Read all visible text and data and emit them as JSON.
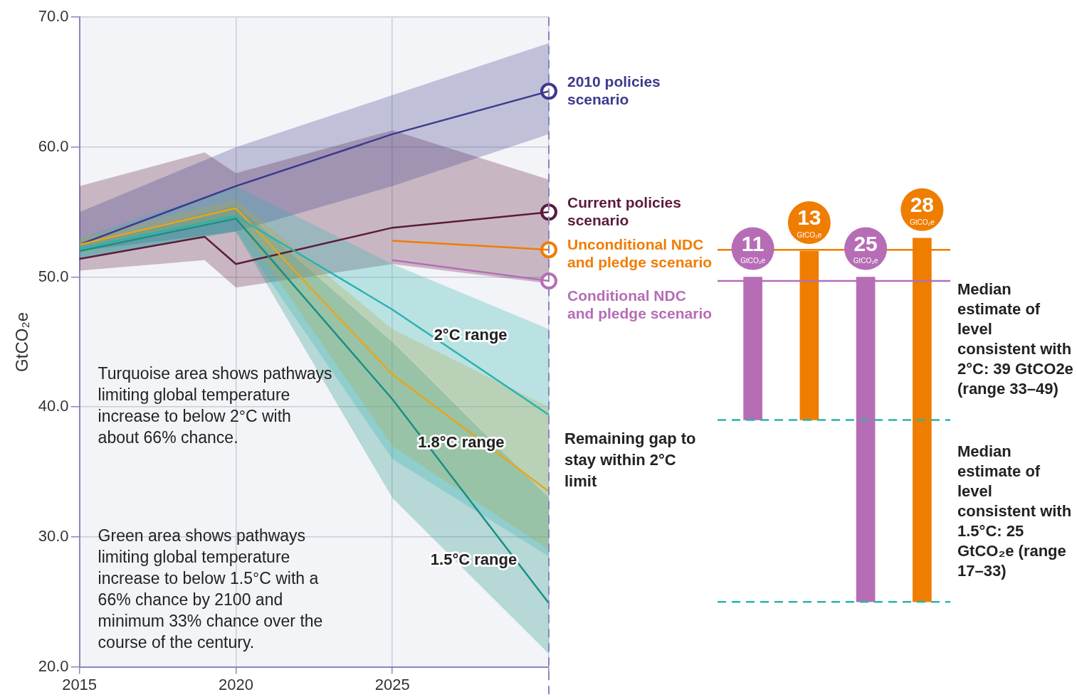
{
  "chart_data": [
    {
      "type": "line",
      "ylabel": "GtCO₂e",
      "xlim": [
        2015,
        2030
      ],
      "xticks": [
        2015,
        2020,
        2025,
        {
          "value": 2030,
          "label": null
        }
      ],
      "ylim": [
        20,
        70
      ],
      "yticks": [
        {
          "value": 20,
          "label": "20.0"
        },
        {
          "value": 30,
          "label": "30.0"
        },
        {
          "value": 40,
          "label": "40.0"
        },
        {
          "value": 50,
          "label": "50.0"
        },
        {
          "value": 60,
          "label": "60.0"
        },
        {
          "value": 70,
          "label": "70.0"
        }
      ],
      "grid": true,
      "legend": false,
      "series": [
        {
          "type": "line",
          "color": "#2ab3b0",
          "x": [
            2015,
            2020,
            2025,
            2030
          ],
          "values": [
            52.2,
            54.7,
            47.5,
            39.4
          ],
          "lower": [
            51.5,
            53.5,
            36,
            28.5
          ],
          "upper": [
            53,
            57,
            51,
            46
          ]
        },
        {
          "type": "line",
          "color": "#e8a51c",
          "x": [
            2015,
            2020,
            2025,
            2030
          ],
          "values": [
            52.5,
            55.3,
            42.5,
            33.5
          ],
          "lower": [
            52,
            54.5,
            37,
            29
          ],
          "upper": [
            53,
            56,
            46,
            40
          ]
        },
        {
          "type": "line",
          "color": "#1a8f86",
          "x": [
            2015,
            2020,
            2025,
            2030
          ],
          "values": [
            52,
            54.5,
            40.6,
            24.9
          ],
          "lower": [
            51.5,
            53.5,
            33,
            21
          ],
          "upper": [
            52.5,
            55.5,
            45,
            33
          ]
        },
        {
          "type": "line",
          "name": "2010 policies scenario",
          "color": "#3d3a8c",
          "x": [
            2015,
            2020,
            2025,
            2030
          ],
          "values": [
            52.5,
            57,
            61,
            64.3
          ],
          "lower": [
            52,
            53.5,
            57,
            61
          ],
          "upper": [
            55,
            60,
            64,
            68
          ]
        },
        {
          "type": "line",
          "name": "Current policies scenario",
          "color": "#5b1a3c",
          "x": [
            2015,
            2019,
            2020,
            2025,
            2030
          ],
          "values": [
            51.4,
            53.1,
            51,
            53.8,
            55
          ],
          "lower": [
            50.5,
            51.3,
            49.2,
            51,
            49.5
          ],
          "upper": [
            57,
            59.6,
            58,
            61.3,
            57.5
          ]
        },
        {
          "type": "line",
          "name": "Unconditional NDC and pledge scenario",
          "color": "#ef7d00",
          "x": [
            2025,
            2030
          ],
          "values": [
            52.8,
            52.1
          ]
        },
        {
          "type": "line",
          "name": "Conditional NDC and pledge scenario",
          "color": "#b66db6",
          "x": [
            2025,
            2030
          ],
          "values": [
            51.3,
            49.7
          ]
        },
        {
          "type": "scatter",
          "color": "#3d3a8c",
          "marker": "circle",
          "x": [
            2030
          ],
          "values": [
            64.3
          ]
        },
        {
          "type": "scatter",
          "color": "#5b1a3c",
          "marker": "circle",
          "x": [
            2030
          ],
          "values": [
            55
          ]
        },
        {
          "type": "scatter",
          "color": "#ef7d00",
          "marker": "circle",
          "x": [
            2030
          ],
          "values": [
            52.1
          ]
        },
        {
          "type": "scatter",
          "color": "#b66db6",
          "marker": "circle",
          "x": [
            2030
          ],
          "values": [
            49.7
          ]
        }
      ],
      "ref_lines": [
        {
          "axis": "x",
          "value": 2030,
          "color": "#8a84c0",
          "line_style": "dashed"
        }
      ],
      "annotations": [
        "Turquoise area shows pathways limiting global temperature increase to below 2°C with about 66% chance.",
        "Green area shows pathways limiting global temperature increase to below 1.5°C with a 66% chance by 2100 and minimum 33% chance over the course of the century.",
        "2°C range",
        "1.8°C range",
        "1.5°C range",
        "Remaining gap to stay within 2°C limit"
      ]
    },
    {
      "type": "bar",
      "categories": [
        null,
        null,
        null,
        null
      ],
      "ylim": [
        20,
        70
      ],
      "tick_labels": false,
      "base": [
        39,
        39,
        25,
        25
      ],
      "values": [
        11,
        13,
        25,
        28
      ],
      "colors": [
        "#b66db6",
        "#ef7d00",
        "#b66db6",
        "#ef7d00"
      ],
      "value_labels": [
        "11 GtCO₂e",
        "13 GtCO₂e",
        "25 GtCO₂e",
        "28 GtCO₂e"
      ],
      "ref_lines": [
        {
          "axis": "y",
          "value": 52.1,
          "color": "#ef7d00",
          "line_style": "solid"
        },
        {
          "axis": "y",
          "value": 49.7,
          "color": "#b66db6",
          "line_style": "solid"
        },
        {
          "axis": "y",
          "value": 39,
          "color": "#2ab3b0",
          "line_style": "dashed"
        },
        {
          "axis": "y",
          "value": 25,
          "color": "#2ab3b0",
          "line_style": "dashed"
        }
      ],
      "annotations": [
        "Median estimate of level consistent with 2°C: 39 GtCO2e (range 33–49)",
        "Median estimate of level consistent with 1.5°C: 25 GtCO₂e (range 17–33)"
      ]
    }
  ]
}
